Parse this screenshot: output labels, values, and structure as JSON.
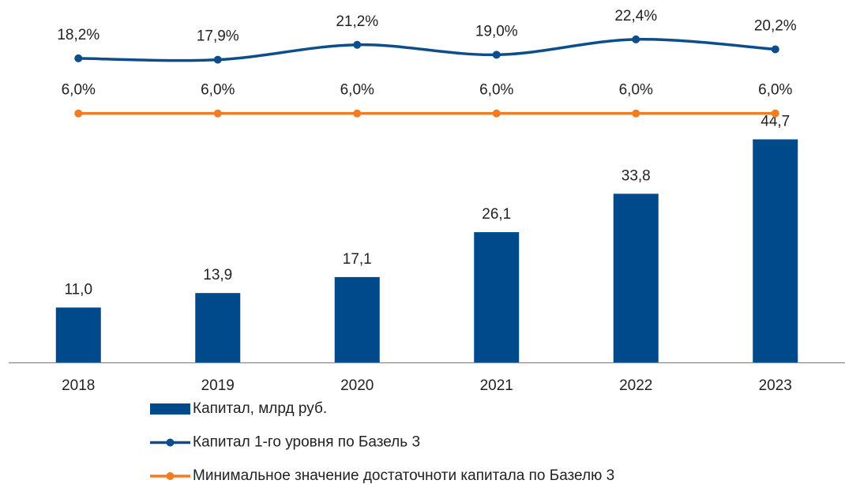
{
  "chart_data": {
    "type": "bar",
    "categories": [
      "2018",
      "2019",
      "2020",
      "2021",
      "2022",
      "2023"
    ],
    "series": [
      {
        "name": "Капитал, млрд руб.",
        "type": "bar",
        "color": "#004a8b",
        "values": [
          11.0,
          13.9,
          17.1,
          26.1,
          33.8,
          44.7
        ],
        "value_labels": [
          "11,0",
          "13,9",
          "17,1",
          "26,1",
          "33,8",
          "44,7"
        ]
      },
      {
        "name": "Капитал 1-го уровня по Базель 3",
        "type": "line",
        "axis": "y2",
        "color": "#0d4e8a",
        "values": [
          18.2,
          17.9,
          21.2,
          19.0,
          22.4,
          20.2
        ],
        "value_labels": [
          "18,2%",
          "17,9%",
          "21,2%",
          "19,0%",
          "22,4%",
          "20,2%"
        ]
      },
      {
        "name": "Минимальное значение достаточноти капитала по Базелю 3",
        "type": "line",
        "axis": "y2",
        "color": "#f47c20",
        "values": [
          6.0,
          6.0,
          6.0,
          6.0,
          6.0,
          6.0
        ],
        "value_labels": [
          "6,0%",
          "6,0%",
          "6,0%",
          "6,0%",
          "6,0%",
          "6,0%"
        ]
      }
    ],
    "ylim": [
      0,
      50
    ],
    "y2lim": [
      0,
      25
    ],
    "legend": "bottom"
  }
}
